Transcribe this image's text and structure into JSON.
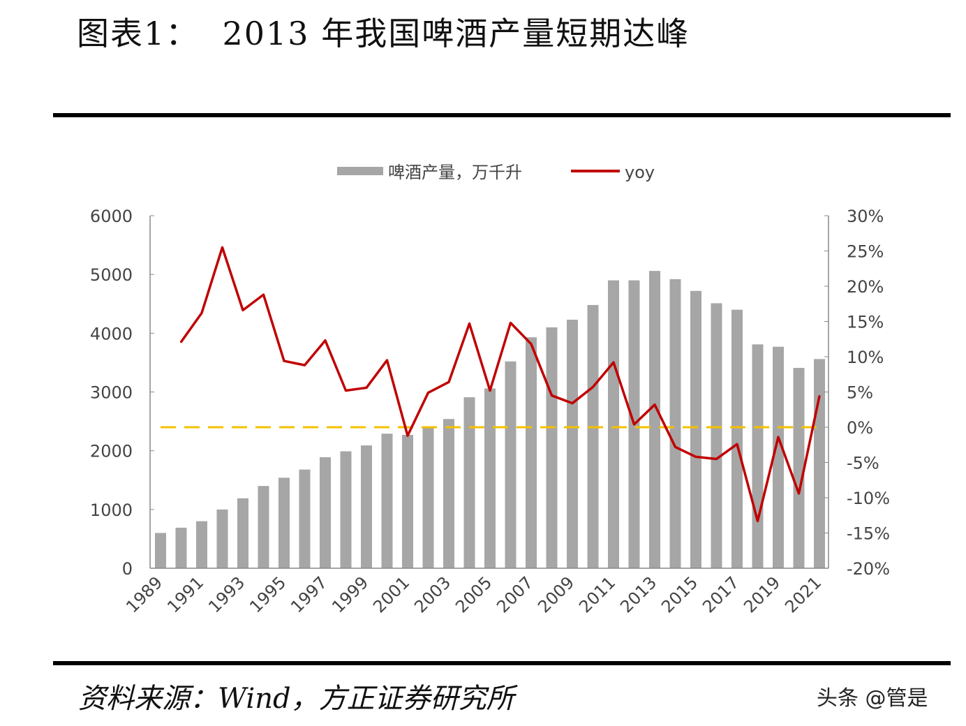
{
  "title": "图表1：  2013 年我国啤酒产量短期达峰",
  "source": "资料来源：Wind，方正证券研究所",
  "watermark": "头条 @管是",
  "colors": {
    "bar": "#a6a6a6",
    "line": "#c00000",
    "zero_line": "#f5c000"
  },
  "chart_data": {
    "type": "bar+line",
    "title": "",
    "legend_position": "top",
    "x": [
      1989,
      1990,
      1991,
      1992,
      1993,
      1994,
      1995,
      1996,
      1997,
      1998,
      1999,
      2000,
      2001,
      2002,
      2003,
      2004,
      2005,
      2006,
      2007,
      2008,
      2009,
      2010,
      2011,
      2012,
      2013,
      2014,
      2015,
      2016,
      2017,
      2018,
      2019,
      2020,
      2021
    ],
    "x_tick_labels": [
      "1989",
      "1991",
      "1993",
      "1995",
      "1997",
      "1999",
      "2001",
      "2003",
      "2005",
      "2007",
      "2009",
      "2011",
      "2013",
      "2015",
      "2017",
      "2019",
      "2021"
    ],
    "y_left": {
      "lim": [
        0,
        6000
      ],
      "ticks": [
        "0",
        "1000",
        "2000",
        "3000",
        "4000",
        "5000",
        "6000"
      ]
    },
    "y_right": {
      "lim": [
        -20,
        30
      ],
      "ticks": [
        "-20%",
        "-15%",
        "-10%",
        "-5%",
        "0%",
        "5%",
        "10%",
        "15%",
        "20%",
        "25%",
        "30%"
      ]
    },
    "grid": false,
    "series": [
      {
        "name": "啤酒产量，万千升",
        "type": "bar",
        "axis": "left",
        "values": [
          600,
          690,
          800,
          1000,
          1190,
          1400,
          1540,
          1680,
          1890,
          1990,
          2090,
          2290,
          2270,
          2390,
          2540,
          2910,
          3060,
          3520,
          3930,
          4100,
          4230,
          4480,
          4900,
          4900,
          5060,
          4920,
          4720,
          4510,
          4400,
          3810,
          3770,
          3410,
          3560
        ]
      },
      {
        "name": "yoy",
        "type": "line",
        "axis": "right",
        "values": [
          null,
          12.1,
          16.2,
          25.5,
          16.6,
          18.8,
          9.4,
          8.8,
          12.3,
          5.2,
          5.6,
          9.5,
          -1.2,
          4.9,
          6.4,
          14.7,
          5.2,
          14.8,
          11.8,
          4.5,
          3.4,
          5.7,
          9.2,
          0.4,
          3.2,
          -2.8,
          -4.2,
          -4.5,
          -2.4,
          -13.3,
          -1.4,
          -9.4,
          4.4
        ]
      }
    ],
    "reference_line": {
      "axis": "right",
      "value": 0,
      "style": "dashed"
    }
  }
}
